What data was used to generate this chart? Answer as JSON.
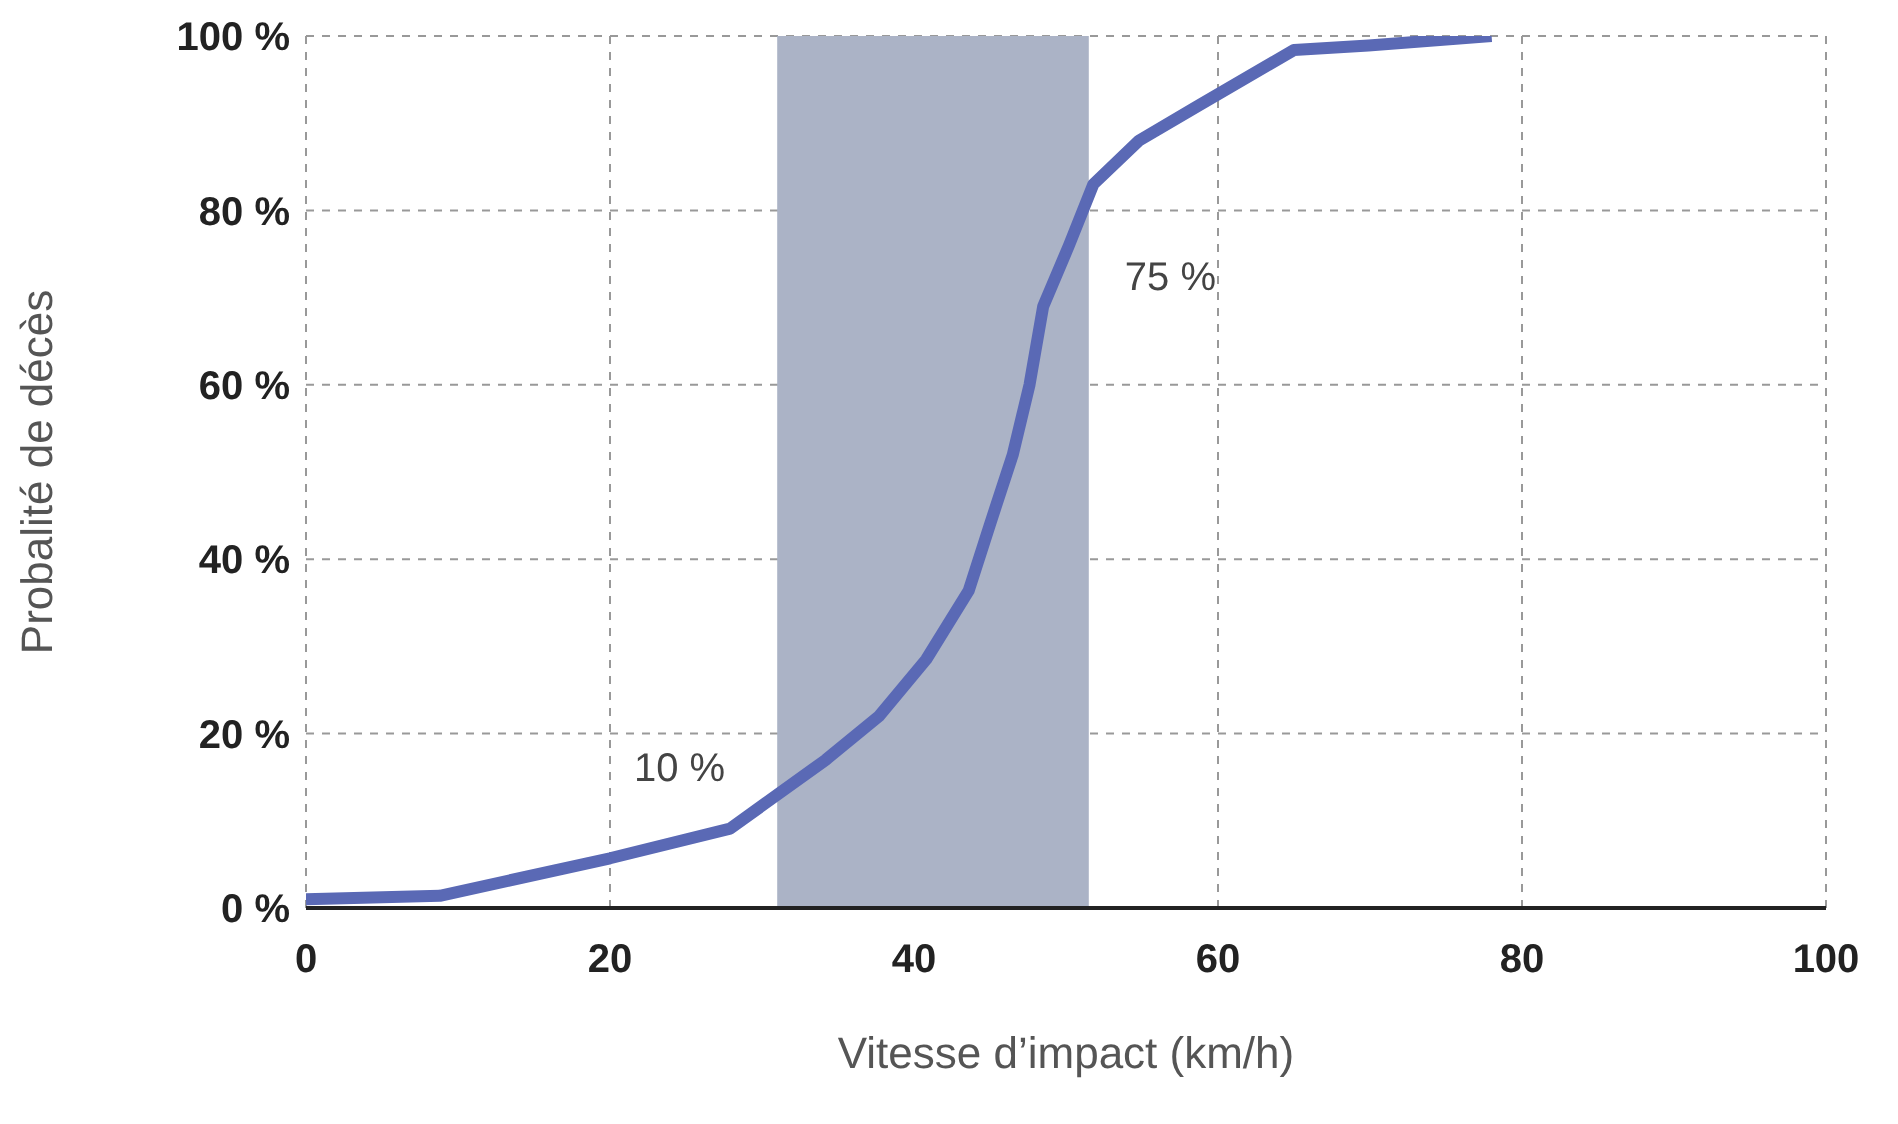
{
  "chart_data": {
    "type": "line",
    "xlabel": "Vitesse d’impact (km/h)",
    "ylabel": "Probalité de décès",
    "x": [
      0,
      8.8,
      20,
      27.9,
      34.2,
      37.7,
      40.8,
      43.6,
      45,
      46.5,
      47.6,
      48.5,
      50.2,
      51.8,
      54.8,
      58.7,
      65,
      69.9,
      78
    ],
    "series": [
      {
        "color": "#5a69b5",
        "values": [
          1,
          1.4,
          5.7,
          9.1,
          17,
          22,
          28.5,
          36.4,
          44,
          52,
          60,
          69,
          76,
          83,
          88,
          92,
          98.4,
          98.9,
          100
        ]
      }
    ],
    "xlim": [
      0,
      100
    ],
    "xticks": [
      0,
      20,
      40,
      60,
      80,
      100
    ],
    "ylim": [
      0,
      100
    ],
    "yticks": [
      {
        "value": 0,
        "label": "0 %"
      },
      {
        "value": 20,
        "label": "20 %"
      },
      {
        "value": 40,
        "label": "40 %"
      },
      {
        "value": 60,
        "label": "60 %"
      },
      {
        "value": 80,
        "label": "80 %"
      },
      {
        "value": 100,
        "label": "100 %"
      }
    ],
    "bands": [
      {
        "axis": "x",
        "from": 31,
        "to": 51.5,
        "color": "#abb3c6"
      }
    ],
    "annotations": [
      "10 %",
      "75 %"
    ],
    "grid": true,
    "line_style": "solid",
    "marker": "none",
    "legend": false
  }
}
